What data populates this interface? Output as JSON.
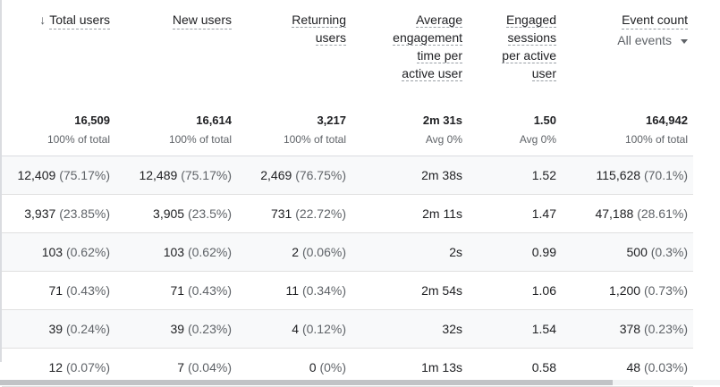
{
  "headers": {
    "total_users": "Total users",
    "new_users": "New users",
    "returning_l1": "Returning",
    "returning_l2": "users",
    "aet_l1": "Average",
    "aet_l2": "engagement",
    "aet_l3": "time per",
    "aet_l4": "active user",
    "esp_l1": "Engaged",
    "esp_l2": "sessions",
    "esp_l3": "per active",
    "esp_l4": "user",
    "event_count": "Event count",
    "event_filter": "All events"
  },
  "icons": {
    "sort": "arrow-down-icon",
    "dropdown": "dropdown-caret-icon"
  },
  "totals": {
    "total_users": {
      "value": "16,509",
      "sub": "100% of total"
    },
    "new_users": {
      "value": "16,614",
      "sub": "100% of total"
    },
    "returning_users": {
      "value": "3,217",
      "sub": "100% of total"
    },
    "avg_engagement": {
      "value": "2m 31s",
      "sub": "Avg 0%"
    },
    "engaged_sessions": {
      "value": "1.50",
      "sub": "Avg 0%"
    },
    "event_count": {
      "value": "164,942",
      "sub": "100% of total"
    }
  },
  "rows": [
    {
      "total_users": "12,409",
      "total_users_pct": "(75.17%)",
      "new_users": "12,489",
      "new_users_pct": "(75.17%)",
      "returning": "2,469",
      "returning_pct": "(76.75%)",
      "avg_time": "2m 38s",
      "eng_sessions": "1.52",
      "events": "115,628",
      "events_pct": "(70.1%)"
    },
    {
      "total_users": "3,937",
      "total_users_pct": "(23.85%)",
      "new_users": "3,905",
      "new_users_pct": "(23.5%)",
      "returning": "731",
      "returning_pct": "(22.72%)",
      "avg_time": "2m 11s",
      "eng_sessions": "1.47",
      "events": "47,188",
      "events_pct": "(28.61%)"
    },
    {
      "total_users": "103",
      "total_users_pct": "(0.62%)",
      "new_users": "103",
      "new_users_pct": "(0.62%)",
      "returning": "2",
      "returning_pct": "(0.06%)",
      "avg_time": "2s",
      "eng_sessions": "0.99",
      "events": "500",
      "events_pct": "(0.3%)"
    },
    {
      "total_users": "71",
      "total_users_pct": "(0.43%)",
      "new_users": "71",
      "new_users_pct": "(0.43%)",
      "returning": "11",
      "returning_pct": "(0.34%)",
      "avg_time": "2m 54s",
      "eng_sessions": "1.06",
      "events": "1,200",
      "events_pct": "(0.73%)"
    },
    {
      "total_users": "39",
      "total_users_pct": "(0.24%)",
      "new_users": "39",
      "new_users_pct": "(0.23%)",
      "returning": "4",
      "returning_pct": "(0.12%)",
      "avg_time": "32s",
      "eng_sessions": "1.54",
      "events": "378",
      "events_pct": "(0.23%)"
    },
    {
      "total_users": "12",
      "total_users_pct": "(0.07%)",
      "new_users": "7",
      "new_users_pct": "(0.04%)",
      "returning": "0",
      "returning_pct": "(0%)",
      "avg_time": "1m 13s",
      "eng_sessions": "0.58",
      "events": "48",
      "events_pct": "(0.03%)"
    }
  ]
}
